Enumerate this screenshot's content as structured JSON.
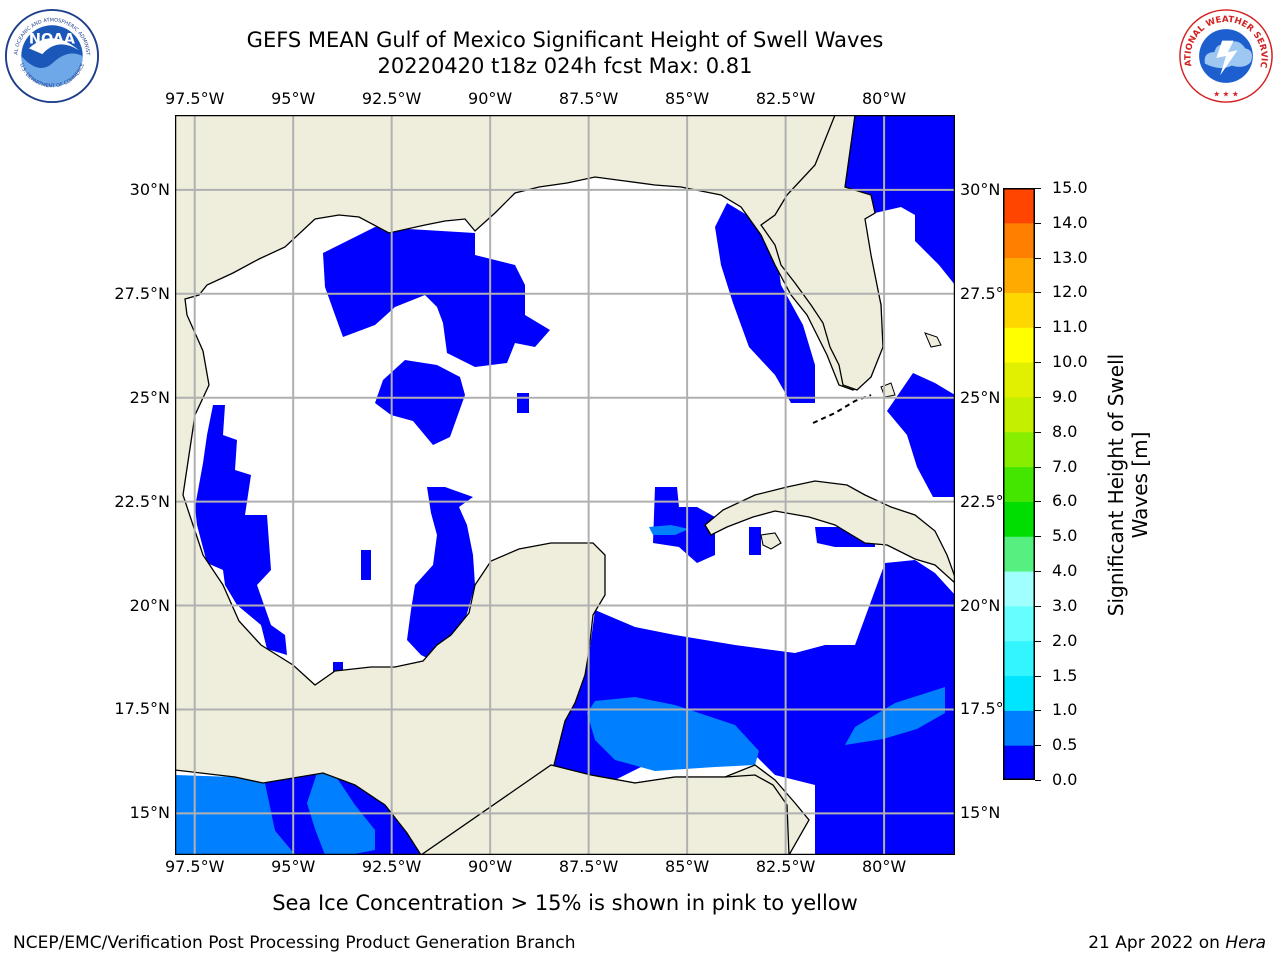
{
  "header": {
    "title_line1": "GEFS MEAN Gulf of Mexico Significant Height of Swell Waves",
    "title_line2": "20220420 t18z 024h fcst   Max: 0.81"
  },
  "logos": {
    "noaa_text": "NOAA",
    "noaa_ring_text": "NATIONAL OCEANIC AND ATMOSPHERIC ADMINISTRATION",
    "noaa_ring_text_bottom": "U.S. DEPARTMENT OF COMMERCE",
    "nws_ring_text": "NATIONAL WEATHER SERVICE"
  },
  "map": {
    "lon_labels": [
      "97.5°W",
      "95°W",
      "92.5°W",
      "90°W",
      "87.5°W",
      "85°W",
      "82.5°W",
      "80°W"
    ],
    "lat_labels_left": [
      "30°N",
      "27.5°N",
      "25°N",
      "22.5°N",
      "20°N",
      "17.5°N",
      "15°N"
    ],
    "lat_labels_right": [
      "30°N",
      "27.5°N",
      "25°N",
      "22.5°N",
      "20°N",
      "17.5°N",
      "15°N"
    ],
    "lon_range": [
      -98,
      -78.2
    ],
    "lat_range": [
      14,
      31.8
    ],
    "colors": {
      "land": "#efeedd",
      "ocean_zero": "#ffffff",
      "bin_0_0_5": "#0000ff",
      "bin_0_5_1_0": "#0080ff",
      "grid": "#b0b0b0",
      "coast": "#000000"
    }
  },
  "colorbar": {
    "label": "Significant Height of Swell Waves [m]",
    "ticks": [
      "0.0",
      "0.5",
      "1.0",
      "1.5",
      "2.0",
      "3.0",
      "4.0",
      "5.0",
      "6.0",
      "7.0",
      "8.0",
      "9.0",
      "10.0",
      "11.0",
      "12.0",
      "13.0",
      "14.0",
      "15.0"
    ],
    "colors": [
      "#0000ff",
      "#0080ff",
      "#00e5ff",
      "#33f5ff",
      "#66ffff",
      "#a0ffff",
      "#55f080",
      "#00dd00",
      "#44e600",
      "#88ee00",
      "#c4f000",
      "#e0f000",
      "#ffff00",
      "#ffd700",
      "#ffaa00",
      "#ff7f00",
      "#ff4500",
      "#ff0000"
    ]
  },
  "note": "Sea Ice Concentration > 15% is shown in pink to yellow",
  "footer": {
    "left": "NCEP/EMC/Verification Post Processing Product Generation Branch",
    "date": "21 Apr 2022 on ",
    "host": "Hera"
  }
}
